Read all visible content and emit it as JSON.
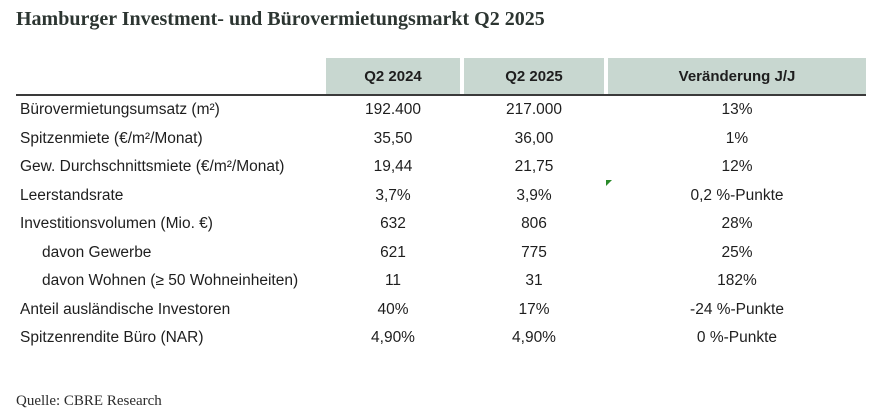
{
  "title": "Hamburger Investment- und Bürovermietungsmarkt Q2 2025",
  "table": {
    "headers": [
      "Q2 2024",
      "Q2 2025",
      "Veränderung J/J"
    ],
    "rows": [
      {
        "label": "Bürovermietungsumsatz (m²)",
        "q2_2024": "192.400",
        "q2_2025": "217.000",
        "change": "13%"
      },
      {
        "label": "Spitzenmiete (€/m²/Monat)",
        "q2_2024": "35,50",
        "q2_2025": "36,00",
        "change": "1%"
      },
      {
        "label": "Gew. Durchschnittsmiete (€/m²/Monat)",
        "q2_2024": "19,44",
        "q2_2025": "21,75",
        "change": "12%"
      },
      {
        "label": "Leerstandsrate",
        "q2_2024": "3,7%",
        "q2_2025": "3,9%",
        "change": "0,2 %-Punkte"
      },
      {
        "label": "Investitionsvolumen (Mio. €)",
        "q2_2024": "632",
        "q2_2025": "806",
        "change": "28%"
      },
      {
        "label": "davon Gewerbe",
        "q2_2024": "621",
        "q2_2025": "775",
        "change": "25%"
      },
      {
        "label": "davon Wohnen (≥ 50 Wohneinheiten)",
        "q2_2024": "11",
        "q2_2025": "31",
        "change": "182%"
      },
      {
        "label": "Anteil ausländische Investoren",
        "q2_2024": "40%",
        "q2_2025": "17%",
        "change": "-24 %-Punkte"
      },
      {
        "label": "Spitzenrendite Büro (NAR)",
        "q2_2024": "4,90%",
        "q2_2025": "4,90%",
        "change": "0 %-Punkte"
      }
    ]
  },
  "source": "Quelle: CBRE Research",
  "colors": {
    "header_fill": "#c8d7d0",
    "marker": "#2a8a2a"
  }
}
